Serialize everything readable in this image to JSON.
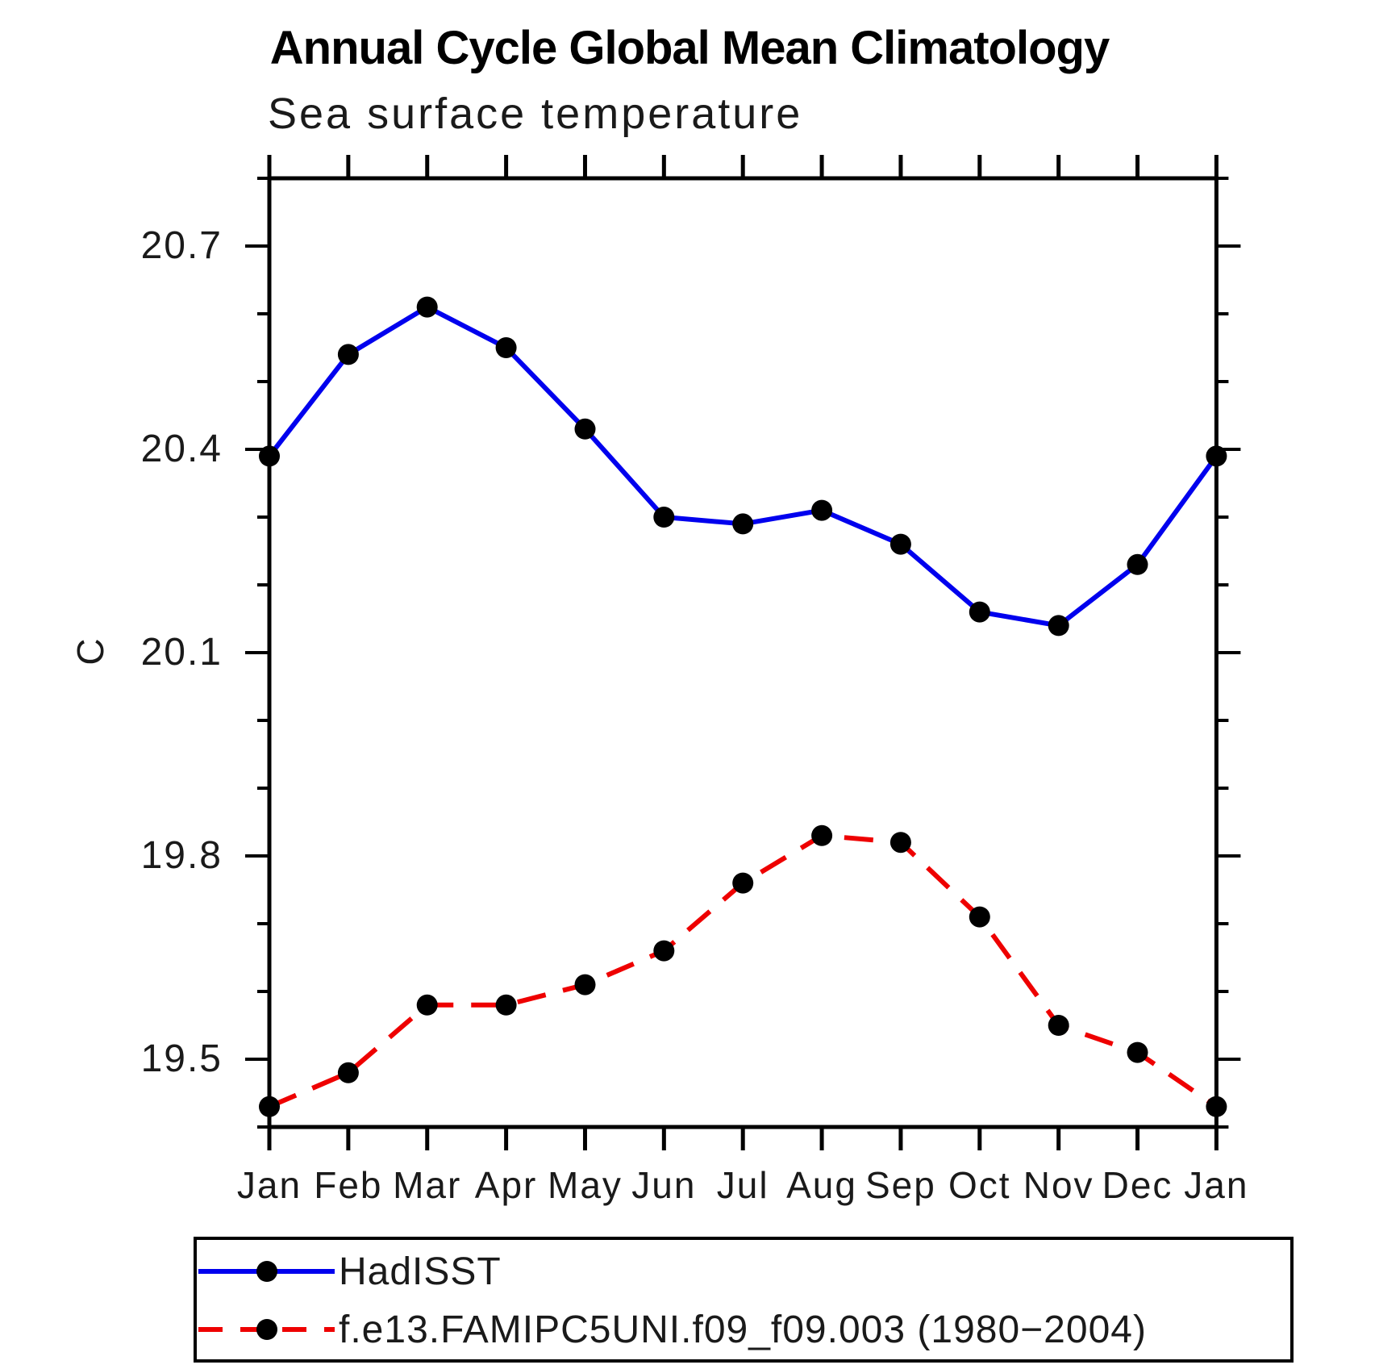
{
  "title": "Annual Cycle Global Mean Climatology",
  "subtitle": "Sea surface temperature",
  "y_axis": {
    "label": "C",
    "tick_labels": [
      "20.7",
      "20.4",
      "20.1",
      "19.8",
      "19.5"
    ],
    "tick_values": [
      20.7,
      20.4,
      20.1,
      19.8,
      19.5
    ],
    "minor_tick_values": [
      19.4,
      19.6,
      19.7,
      19.9,
      20.0,
      20.2,
      20.3,
      20.5,
      20.6,
      20.8
    ],
    "range": [
      19.4,
      20.8
    ]
  },
  "x_axis": {
    "labels": [
      "Jan",
      "Feb",
      "Mar",
      "Apr",
      "May",
      "Jun",
      "Jul",
      "Aug",
      "Sep",
      "Oct",
      "Nov",
      "Dec",
      "Jan"
    ]
  },
  "legend": {
    "items": [
      {
        "label": "HadISST",
        "color": "#0000ee",
        "line_style": "solid",
        "marker": "filled-circle"
      },
      {
        "label": "f.e13.FAMIPC5UNI.f09_f09.003 (1980−2004)",
        "color": "#ee0000",
        "line_style": "dashed",
        "marker": "filled-circle"
      }
    ]
  },
  "colors": {
    "axis": "#000000",
    "marker": "#000000",
    "hadisst_line": "#0000ee",
    "model_line": "#ee0000",
    "background": "#ffffff"
  },
  "chart_data": {
    "type": "line",
    "title": "Annual Cycle Global Mean Climatology",
    "subtitle": "Sea surface temperature",
    "xlabel": "",
    "ylabel": "C",
    "categories": [
      "Jan",
      "Feb",
      "Mar",
      "Apr",
      "May",
      "Jun",
      "Jul",
      "Aug",
      "Sep",
      "Oct",
      "Nov",
      "Dec",
      "Jan"
    ],
    "series": [
      {
        "name": "HadISST",
        "color": "#0000ee",
        "line_style": "solid",
        "marker": "filled-circle",
        "marker_color": "#000000",
        "values": [
          20.39,
          20.54,
          20.61,
          20.55,
          20.43,
          20.3,
          20.29,
          20.31,
          20.26,
          20.16,
          20.14,
          20.23,
          20.39
        ]
      },
      {
        "name": "f.e13.FAMIPC5UNI.f09_f09.003 (1980−2004)",
        "color": "#ee0000",
        "line_style": "dashed",
        "marker": "filled-circle",
        "marker_color": "#000000",
        "values": [
          19.43,
          19.48,
          19.58,
          19.58,
          19.61,
          19.66,
          19.76,
          19.83,
          19.82,
          19.71,
          19.55,
          19.51,
          19.43
        ]
      }
    ],
    "ylim": [
      19.4,
      20.8
    ],
    "yticks_major": [
      19.5,
      19.8,
      20.1,
      20.4,
      20.7
    ],
    "ytick_minor_step": 0.1,
    "grid": false,
    "legend_position": "bottom-left"
  }
}
